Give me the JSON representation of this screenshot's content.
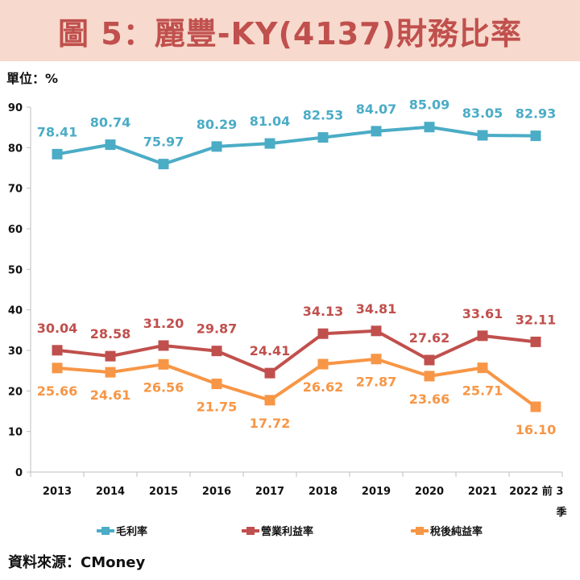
{
  "title": "圖 5：麗豐-KY(4137)財務比率",
  "unit_label": "單位：%",
  "source": "資料來源：CMoney",
  "chart_data": {
    "type": "line",
    "categories": [
      "2013",
      "2014",
      "2015",
      "2016",
      "2017",
      "2018",
      "2019",
      "2020",
      "2021",
      "2022 前 3 季"
    ],
    "ylim": [
      0,
      90
    ],
    "yticks": [
      0,
      10,
      20,
      30,
      40,
      50,
      60,
      70,
      80,
      90
    ],
    "legend_position": "bottom",
    "grid": false,
    "series": [
      {
        "name": "毛利率",
        "color": "#4bacc6",
        "values": [
          78.41,
          80.74,
          75.97,
          80.29,
          81.04,
          82.53,
          84.07,
          85.09,
          83.05,
          82.93
        ],
        "labels": [
          "78.41",
          "80.74",
          "75.97",
          "80.29",
          "81.04",
          "82.53",
          "84.07",
          "85.09",
          "83.05",
          "82.93"
        ]
      },
      {
        "name": "營業利益率",
        "color": "#c0504d",
        "values": [
          30.04,
          28.58,
          31.2,
          29.87,
          24.41,
          34.13,
          34.81,
          27.62,
          33.61,
          32.11
        ],
        "labels": [
          "30.04",
          "28.58",
          "31.20",
          "29.87",
          "24.41",
          "34.13",
          "34.81",
          "27.62",
          "33.61",
          "32.11"
        ]
      },
      {
        "name": "稅後純益率",
        "color": "#f79646",
        "values": [
          25.66,
          24.61,
          26.56,
          21.75,
          17.72,
          26.62,
          27.87,
          23.66,
          25.71,
          16.1
        ],
        "labels": [
          "25.66",
          "24.61",
          "26.56",
          "21.75",
          "17.72",
          "26.62",
          "27.87",
          "23.66",
          "25.71",
          "16.10"
        ]
      }
    ]
  }
}
